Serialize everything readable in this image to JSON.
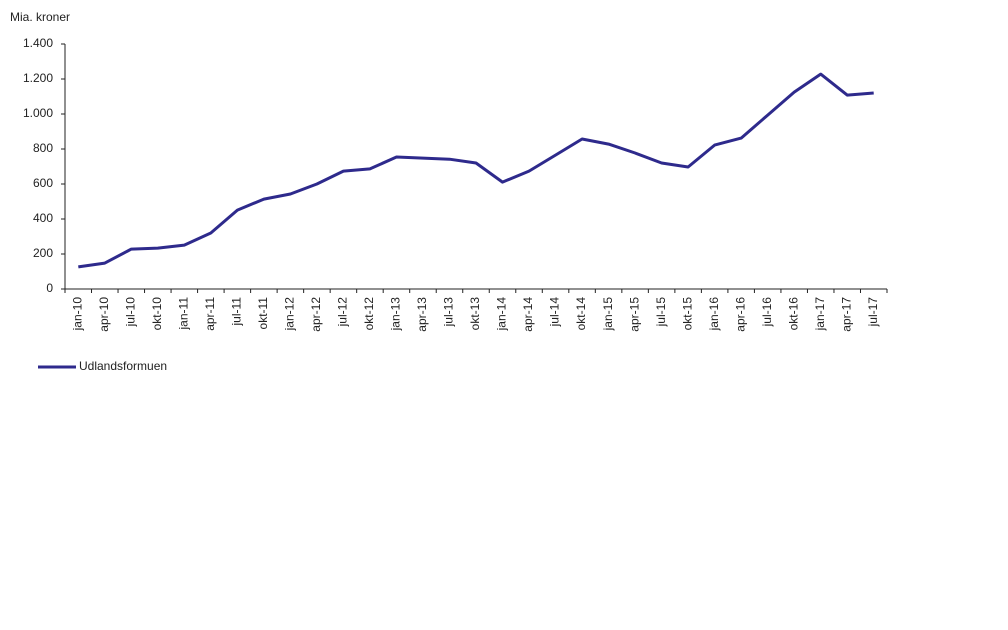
{
  "chart_data": {
    "type": "line",
    "y_axis_label": "Mia. kroner",
    "categories": [
      "jan-10",
      "apr-10",
      "jul-10",
      "okt-10",
      "jan-11",
      "apr-11",
      "jul-11",
      "okt-11",
      "jan-12",
      "apr-12",
      "jul-12",
      "okt-12",
      "jan-13",
      "apr-13",
      "jul-13",
      "okt-13",
      "jan-14",
      "apr-14",
      "jul-14",
      "okt-14",
      "jan-15",
      "apr-15",
      "jul-15",
      "okt-15",
      "jan-16",
      "apr-16",
      "jul-16",
      "okt-16",
      "jan-17",
      "apr-17",
      "jul-17"
    ],
    "series": [
      {
        "name": "Udlandsformuen",
        "color": "#2e2a8c",
        "values": [
          126,
          148,
          228,
          234,
          251,
          320,
          451,
          514,
          543,
          600,
          674,
          686,
          754,
          748,
          742,
          720,
          611,
          674,
          765,
          857,
          828,
          777,
          720,
          697,
          822,
          862,
          994,
          1125,
          1228,
          1108,
          1120
        ]
      }
    ],
    "ylim": [
      0,
      1400
    ],
    "yticks": [
      0,
      200,
      400,
      600,
      800,
      {
        "value": 1000,
        "label": "1.000"
      },
      {
        "value": 1200,
        "label": "1.200"
      },
      {
        "value": 1400,
        "label": "1.400"
      }
    ],
    "grid": false,
    "legend": "bottom-left"
  }
}
